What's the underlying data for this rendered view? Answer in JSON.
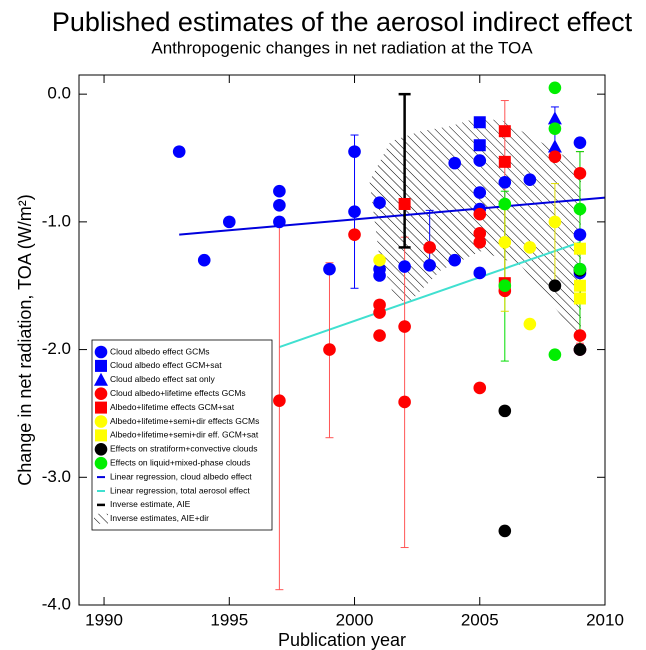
{
  "chart_data": {
    "type": "scatter",
    "title": "Published estimates of the aerosol indirect effect",
    "subtitle": "Anthropogenic changes in net radiation at the TOA",
    "xlabel": "Publication year",
    "ylabel": "Change in net radiation, TOA (W/m²)",
    "xlim": [
      1989,
      2010
    ],
    "ylim": [
      -4.0,
      0.15
    ],
    "xticks": [
      1990,
      1995,
      2000,
      2005,
      2010
    ],
    "yticks": [
      {
        "value": 0,
        "label": "0.0"
      },
      {
        "value": -1,
        "label": "-1.0"
      },
      {
        "value": -2,
        "label": "-2.0"
      },
      {
        "value": -3,
        "label": "-3.0"
      },
      {
        "value": -4,
        "label": "-4.0"
      }
    ],
    "legend": "lower-left",
    "series": [
      {
        "name": "Cloud albedo effect GCMs",
        "color": "#0000ff",
        "marker": "circle",
        "x": [
          1993,
          1994,
          1995,
          1997,
          1997,
          1997,
          1999,
          2000,
          2000,
          2001,
          2001,
          2001,
          2002,
          2003,
          2004,
          2004,
          2005,
          2005,
          2005,
          2005,
          2006,
          2007,
          2009,
          2009,
          2009,
          2009,
          2009
        ],
        "values": [
          -0.45,
          -1.3,
          -1.0,
          -0.76,
          -0.87,
          -1.0,
          -1.37,
          -0.45,
          -0.92,
          -0.85,
          -1.37,
          -1.42,
          -1.35,
          -1.34,
          -0.54,
          -1.3,
          -0.52,
          -0.77,
          -0.9,
          -1.4,
          -0.69,
          -0.67,
          -0.38,
          -1.1,
          -1.37,
          -1.4,
          -2.0
        ]
      },
      {
        "name": "Cloud albedo effect GCM+sat",
        "color": "#0000ff",
        "marker": "square",
        "x": [
          2005,
          2005
        ],
        "values": [
          -0.22,
          -0.4
        ]
      },
      {
        "name": "Cloud albedo effect sat only",
        "color": "#0000ff",
        "marker": "triangle",
        "x": [
          2008,
          2008
        ],
        "values": [
          -0.19,
          -0.41
        ]
      },
      {
        "name": "Cloud albedo+lifetime effects GCMs",
        "color": "#ff0000",
        "marker": "circle",
        "x": [
          1997,
          1999,
          2000,
          2001,
          2001,
          2001,
          2002,
          2002,
          2003,
          2005,
          2005,
          2005,
          2005,
          2006,
          2008,
          2009,
          2009,
          2009
        ],
        "values": [
          -2.4,
          -2.0,
          -1.1,
          -1.65,
          -1.71,
          -1.89,
          -1.82,
          -2.41,
          -1.2,
          -0.94,
          -1.09,
          -1.16,
          -2.3,
          -1.54,
          -0.49,
          -0.62,
          -1.89,
          -2.0
        ]
      },
      {
        "name": "Albedo+lifetime effects GCM+sat",
        "color": "#ff0000",
        "marker": "square",
        "x": [
          2002,
          2006,
          2006,
          2006
        ],
        "values": [
          -0.86,
          -0.29,
          -0.53,
          -1.48
        ]
      },
      {
        "name": "Albedo+lifetime+semi+dir effects GCMs",
        "color": "#ffff00",
        "marker": "circle",
        "x": [
          2001,
          2006,
          2007,
          2007,
          2008
        ],
        "values": [
          -1.3,
          -1.16,
          -1.2,
          -1.8,
          -1.0
        ]
      },
      {
        "name": "Albedo+lifetime+semi+dir eff. GCM+sat",
        "color": "#ffff00",
        "marker": "square",
        "x": [
          2009,
          2009,
          2009
        ],
        "values": [
          -1.21,
          -1.5,
          -1.6
        ]
      },
      {
        "name": "Effects on stratiform+convective clouds",
        "color": "#000000",
        "marker": "circle",
        "x": [
          2006,
          2006,
          2008,
          2009,
          2009
        ],
        "values": [
          -2.48,
          -3.42,
          -1.5,
          -1.38,
          -2.0
        ]
      },
      {
        "name": "Effects on liquid+mixed-phase clouds",
        "color": "#00ee00",
        "marker": "circle",
        "x": [
          2008,
          2008,
          2006,
          2006,
          2008,
          2009,
          2009
        ],
        "values": [
          0.05,
          -0.27,
          -0.86,
          -1.5,
          -2.04,
          -0.9,
          -1.37
        ]
      },
      {
        "name": "Linear regression, cloud albedo effect",
        "color": "#0000dd",
        "marker": "line",
        "x": [
          1993,
          2010
        ],
        "values": [
          -1.1,
          -0.81
        ]
      },
      {
        "name": "Linear regression, total aerosol effect",
        "color": "#40e0d0",
        "marker": "line",
        "x": [
          1997,
          2009
        ],
        "values": [
          -1.98,
          -1.16
        ]
      },
      {
        "name": "Inverse estimate, AIE",
        "color": "#000000",
        "marker": "errorbar",
        "x": [
          2002
        ],
        "low": [
          -1.2
        ],
        "high": [
          0.0
        ]
      },
      {
        "name": "Inverse estimates, AIE+dir",
        "color": "#000000",
        "marker": "hatch",
        "x": [
          2000.6,
          2001.44,
          2002.64,
          2003.84,
          2004.64,
          2005.84,
          2007.04,
          2009.04,
          2009.04,
          2008.24,
          2006.64,
          2005.04,
          2003.44,
          2002.24,
          2001.64,
          2000.96
        ],
        "values": [
          -0.68,
          -0.37,
          -0.29,
          -0.25,
          -0.2,
          -0.2,
          -0.33,
          -0.56,
          -1.93,
          -1.73,
          -1.34,
          -1.23,
          -1.38,
          -1.62,
          -1.62,
          -1.23
        ]
      }
    ],
    "error_bars": [
      {
        "x": 2000,
        "low": -1.52,
        "high": -0.32,
        "color": "#0000ff"
      },
      {
        "x": 2003,
        "low": -1.32,
        "high": -0.91,
        "color": "#0000ff"
      },
      {
        "x": 2008,
        "low": -0.45,
        "high": -0.1,
        "color": "#0000ff"
      },
      {
        "x": 1997,
        "low": -3.88,
        "high": -1.03,
        "color": "#ff5555"
      },
      {
        "x": 1999,
        "low": -2.69,
        "high": -1.32,
        "color": "#ff5555"
      },
      {
        "x": 2002,
        "low": -3.55,
        "high": -1.12,
        "color": "#ff5555"
      },
      {
        "x": 2006,
        "low": -1.54,
        "high": -0.05,
        "color": "#ff5555"
      },
      {
        "x": 2009,
        "low": -1.95,
        "high": -0.45,
        "color": "#ff5555"
      },
      {
        "x": 2006,
        "low": -2.09,
        "high": -0.76,
        "color": "#00dd00"
      },
      {
        "x": 2009,
        "low": -1.97,
        "high": -0.45,
        "color": "#00dd00"
      },
      {
        "x": 2006,
        "low": -1.7,
        "high": -0.9,
        "color": "#dddd00"
      },
      {
        "x": 2008,
        "low": -1.5,
        "high": -0.7,
        "color": "#dddd00"
      }
    ]
  }
}
